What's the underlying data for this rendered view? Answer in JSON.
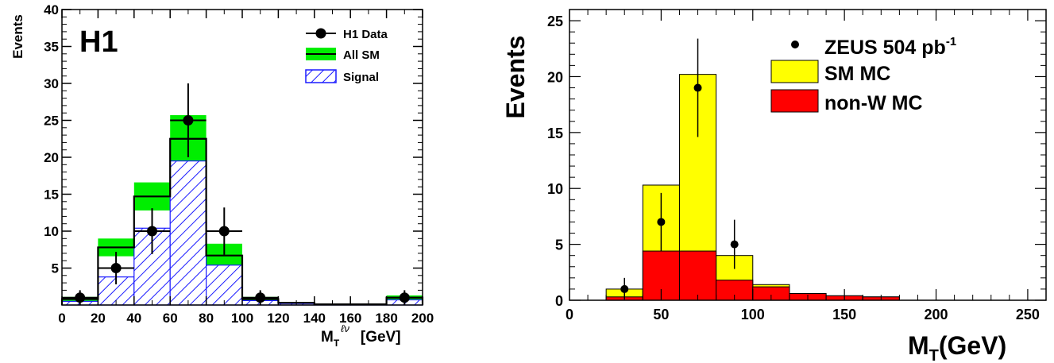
{
  "chart_data": [
    {
      "type": "histogram",
      "corner_label": "H1",
      "xlabel": "M",
      "xlabel_sub": "T",
      "xlabel_sup": "ℓν",
      "xlabel_unit": "[GeV]",
      "ylabel": "Events",
      "xlim": [
        0,
        200
      ],
      "ylim": [
        0,
        40
      ],
      "x_ticks": [
        "0",
        "20",
        "40",
        "60",
        "80",
        "100",
        "120",
        "140",
        "160",
        "180",
        "200"
      ],
      "y_ticks": [
        "5",
        "10",
        "15",
        "20",
        "25",
        "30",
        "35",
        "40"
      ],
      "bin_edges": [
        0,
        20,
        40,
        60,
        80,
        100,
        120,
        140,
        160,
        180,
        200
      ],
      "legend": [
        {
          "label": "H1 Data",
          "marker": "dot"
        },
        {
          "label": "All SM",
          "marker": "band",
          "color": "#00ee00"
        },
        {
          "label": "Signal",
          "marker": "hatch",
          "color": "#1a1aff"
        }
      ],
      "all_sm": [
        0.8,
        7.8,
        14.7,
        22.5,
        6.7,
        0.8,
        0.3,
        0.1,
        0.1,
        1.0
      ],
      "all_sm_error": [
        0.3,
        1.2,
        1.9,
        3.2,
        1.6,
        0.3,
        0.1,
        0.05,
        0.05,
        0.3
      ],
      "signal": [
        0.5,
        3.8,
        10.4,
        19.5,
        5.4,
        0.6,
        0.2,
        0.1,
        0.1,
        0.7
      ],
      "data": {
        "x": [
          10,
          30,
          50,
          70,
          90,
          110,
          190
        ],
        "y": [
          1,
          5,
          10,
          25,
          10,
          1,
          1
        ],
        "err": [
          1.0,
          2.2,
          3.1,
          5.0,
          3.2,
          1.0,
          1.0
        ]
      }
    },
    {
      "type": "histogram",
      "xlabel": "M",
      "xlabel_sub": "T",
      "xlabel_unit": "(GeV)",
      "ylabel": "Events",
      "xlim": [
        0,
        260
      ],
      "ylim": [
        0,
        26
      ],
      "x_ticks": [
        "0",
        "50",
        "100",
        "150",
        "200",
        "250"
      ],
      "y_ticks": [
        "0",
        "5",
        "10",
        "15",
        "20",
        "25"
      ],
      "bin_edges": [
        20,
        40,
        60,
        80,
        100,
        120,
        140,
        160,
        180
      ],
      "legend": [
        {
          "label": "ZEUS 504 pb",
          "sup": "-1",
          "marker": "dot"
        },
        {
          "label": "SM MC",
          "marker": "box",
          "color": "#ffff00"
        },
        {
          "label": "non-W MC",
          "marker": "box",
          "color": "#ff0000"
        }
      ],
      "sm_mc": [
        1.0,
        10.3,
        20.2,
        4.0,
        1.4,
        0.6,
        0.4,
        0.3
      ],
      "non_w_mc": [
        0.3,
        4.4,
        4.4,
        1.8,
        1.2,
        0.6,
        0.4,
        0.3
      ],
      "data": {
        "x": [
          30,
          50,
          70,
          90
        ],
        "y": [
          1,
          7,
          19,
          5
        ],
        "err_low": [
          0.9,
          2.6,
          4.4,
          2.2
        ],
        "err_high": [
          1.0,
          2.6,
          4.4,
          2.2
        ]
      }
    }
  ]
}
